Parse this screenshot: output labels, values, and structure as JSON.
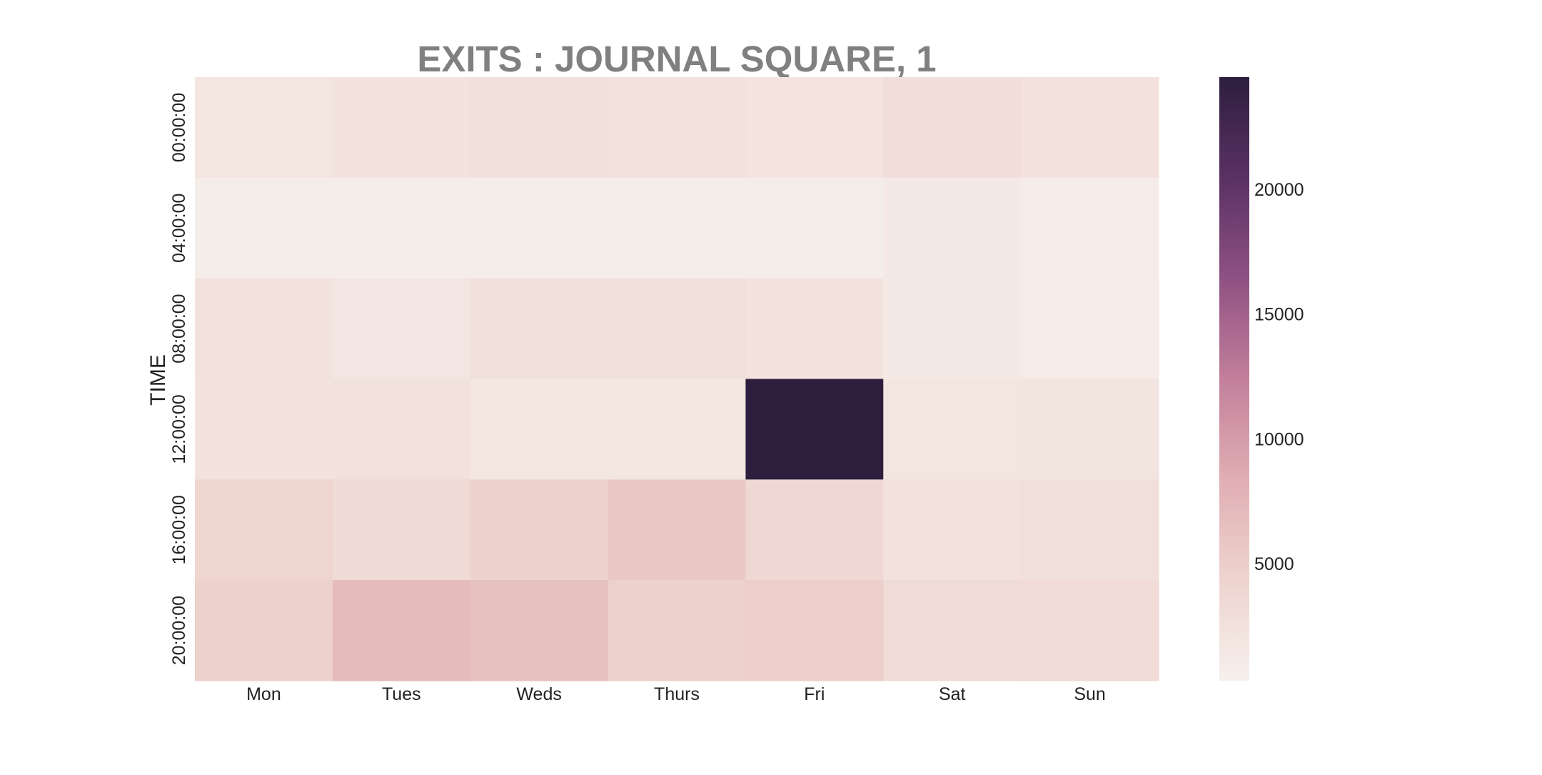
{
  "chart_data": {
    "type": "heatmap",
    "title": "EXITS : JOURNAL SQUARE, 1",
    "xlabel": "",
    "ylabel": "TIME",
    "x_categories": [
      "Mon",
      "Tues",
      "Weds",
      "Thurs",
      "Fri",
      "Sat",
      "Sun"
    ],
    "y_categories": [
      "00:00:00",
      "04:00:00",
      "08:00:00",
      "12:00:00",
      "16:00:00",
      "20:00:00"
    ],
    "values": [
      [
        1800,
        2200,
        2600,
        2400,
        2000,
        3000,
        2500
      ],
      [
        800,
        800,
        700,
        700,
        800,
        1300,
        900
      ],
      [
        2300,
        1700,
        2800,
        2800,
        2200,
        1300,
        1000
      ],
      [
        2200,
        2300,
        1900,
        1900,
        24500,
        1800,
        2100
      ],
      [
        4200,
        3400,
        4500,
        5600,
        3700,
        2500,
        2700
      ],
      [
        4600,
        7000,
        6500,
        4700,
        5000,
        3200,
        3300
      ]
    ],
    "colorbar": {
      "ticks": [
        5000,
        10000,
        15000,
        20000
      ],
      "tick_labels": [
        "5000",
        "10000",
        "15000",
        "20000"
      ],
      "min": 300,
      "max": 24500,
      "colors": [
        "#f6f0ec",
        "#eed4cf",
        "#e1aeb3",
        "#c27f9b",
        "#8f5183",
        "#5a3163",
        "#2d1e3e"
      ]
    },
    "grid": false,
    "legend": "colorbar-right"
  }
}
